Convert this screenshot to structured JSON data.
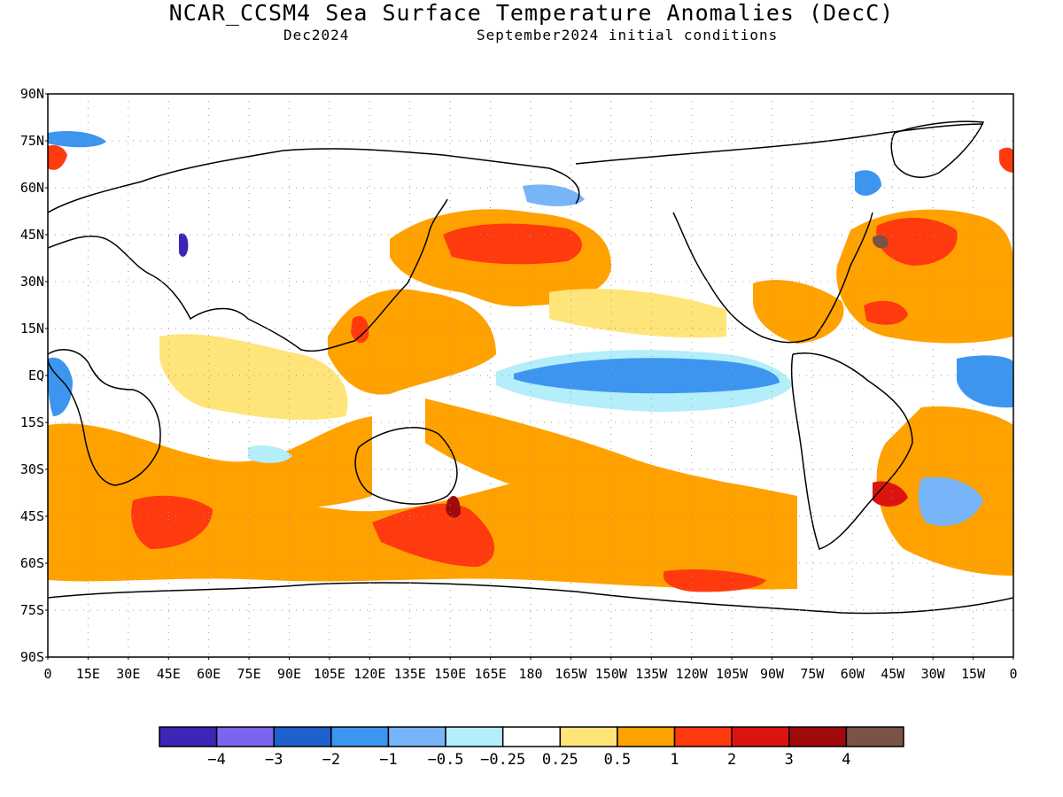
{
  "header": {
    "title": "NCAR_CCSM4 Sea Surface Temperature Anomalies (DecC)",
    "valid_month": "Dec2024",
    "init_conditions": "September2024 initial conditions"
  },
  "map": {
    "lat_labels": [
      "90N",
      "75N",
      "60N",
      "45N",
      "30N",
      "15N",
      "EQ",
      "15S",
      "30S",
      "45S",
      "60S",
      "75S",
      "90S"
    ],
    "lon_labels": [
      "0",
      "15E",
      "30E",
      "45E",
      "60E",
      "75E",
      "90E",
      "105E",
      "120E",
      "135E",
      "150E",
      "165E",
      "180",
      "165W",
      "150W",
      "135W",
      "120W",
      "105W",
      "90W",
      "75W",
      "60W",
      "45W",
      "30W",
      "15W",
      "0"
    ]
  },
  "colorbar": {
    "colors": [
      "#3f25b6",
      "#7a66ee",
      "#1e60cc",
      "#3c96f0",
      "#78b4f8",
      "#b4eefa",
      "#ffffff",
      "#ffe47a",
      "#ffa200",
      "#ff3a0e",
      "#dc1410",
      "#a00a0a",
      "#7a5246"
    ],
    "labels": [
      "-4",
      "-3",
      "-2",
      "-1",
      "-0.5",
      "-0.25",
      "0.25",
      "0.5",
      "1",
      "2",
      "3",
      "4"
    ]
  }
}
